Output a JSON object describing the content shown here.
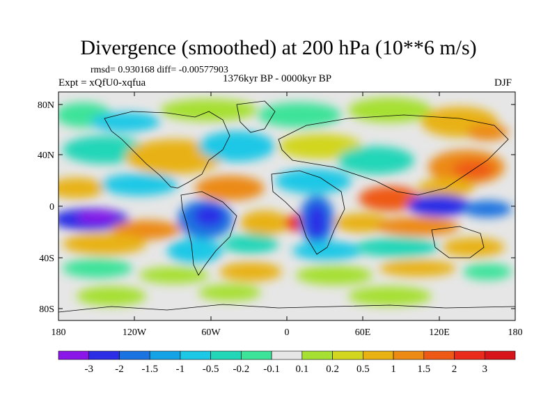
{
  "title": "Divergence (smoothed) at 200 hPa (10**6 m/s)",
  "stats": "rmsd= 0.930168 diff= -0.00577903",
  "experiment": "Expt = xQfU0-xqfua",
  "period": "1376kyr BP - 0000kyr BP",
  "season": "DJF",
  "lat_ticks": [
    "80N",
    "40N",
    "0",
    "40S",
    "80S"
  ],
  "lon_ticks": [
    "180",
    "120W",
    "60W",
    "0",
    "60E",
    "120E",
    "180"
  ],
  "colorbar": {
    "labels": [
      "-3",
      "-2",
      "-1.5",
      "-1",
      "-0.5",
      "-0.2",
      "-0.1",
      "0.1",
      "0.2",
      "0.5",
      "1",
      "1.5",
      "2",
      "3"
    ],
    "colors": [
      "#8a16e8",
      "#2c2ee6",
      "#1a73e0",
      "#14a2e6",
      "#1cc8e6",
      "#22d6b8",
      "#3ee39a",
      "#e6e6e6",
      "#a6e032",
      "#d2d61e",
      "#e8b212",
      "#ec8a14",
      "#ee5a16",
      "#ea2a1a",
      "#d6141a"
    ]
  },
  "map_colors": {
    "ocean_neutral": "#e6e6e6",
    "coastline": "#000000"
  }
}
